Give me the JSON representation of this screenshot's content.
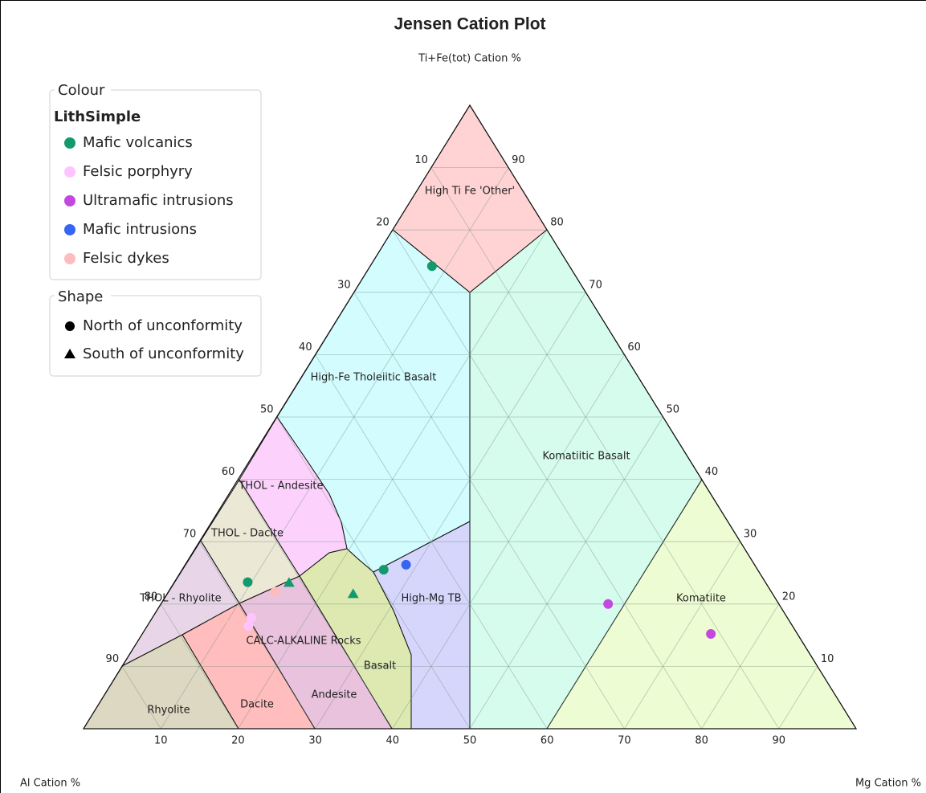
{
  "chart_data": {
    "type": "ternary",
    "title": "Jensen Cation Plot",
    "top_label": "Ti+Fe(tot) Cation %",
    "left_label": "Al Cation %",
    "right_label": "Mg Cation %",
    "al_ticks": [
      10,
      20,
      30,
      40,
      50,
      60,
      70,
      80,
      90
    ],
    "fe_ticks": [
      10,
      20,
      30,
      40,
      50,
      60,
      70,
      80,
      90
    ],
    "mg_ticks": [
      10,
      20,
      30,
      40,
      50,
      60,
      70,
      80,
      90
    ],
    "grid": true,
    "fields": [
      "High Ti Fe 'Other'",
      "High-Fe Tholeiitic Basalt",
      "Komatiitic Basalt",
      "THOL - Andesite",
      "THOL - Dacite",
      "THOL - Rhyolite",
      "High-Mg TB",
      "Komatiite",
      "CALC-ALKALINE Rocks",
      "Basalt",
      "Andesite",
      "Dacite",
      "Rhyolite"
    ],
    "colour_legend": {
      "title": "Colour",
      "subtitle": "LithSimple"
    },
    "shape_legend": {
      "title": "Shape",
      "items": [
        {
          "name": "North of unconformity",
          "marker": "circle"
        },
        {
          "name": "South of unconformity",
          "marker": "triangle"
        }
      ]
    },
    "series": [
      {
        "name": "Mafic volcanics",
        "color": "#139a6c",
        "points": [
          {
            "al": 17.8,
            "fe": 74.2,
            "mg": 8.0,
            "marker": "circle"
          },
          {
            "al": 67.0,
            "fe": 23.5,
            "mg": 9.5,
            "marker": "circle"
          },
          {
            "al": 48.4,
            "fe": 25.5,
            "mg": 26.1,
            "marker": "circle"
          },
          {
            "al": 61.7,
            "fe": 23.4,
            "mg": 14.9,
            "marker": "triangle"
          },
          {
            "al": 54.3,
            "fe": 21.6,
            "mg": 24.1,
            "marker": "triangle"
          }
        ]
      },
      {
        "name": "Felsic porphyry",
        "color": "#ffc4ff",
        "points": [
          {
            "al": 69.4,
            "fe": 17.8,
            "mg": 12.8,
            "marker": "circle"
          },
          {
            "al": 70.4,
            "fe": 16.5,
            "mg": 13.1,
            "marker": "circle"
          }
        ]
      },
      {
        "name": "Ultramafic intrusions",
        "color": "#c348e0",
        "points": [
          {
            "al": 22.1,
            "fe": 20.0,
            "mg": 57.9,
            "marker": "circle"
          },
          {
            "al": 11.2,
            "fe": 15.2,
            "mg": 73.6,
            "marker": "circle"
          }
        ]
      },
      {
        "name": "Mafic intrusions",
        "color": "#3565f2",
        "points": [
          {
            "al": 45.1,
            "fe": 26.3,
            "mg": 28.6,
            "marker": "circle"
          }
        ]
      },
      {
        "name": "Felsic dykes",
        "color": "#ffbcbc",
        "points": [
          {
            "al": 64.2,
            "fe": 22.0,
            "mg": 13.8,
            "marker": "circle"
          },
          {
            "al": 73.1,
            "fe": 17.6,
            "mg": 9.3,
            "marker": "circle"
          },
          {
            "al": 78.9,
            "fe": 13.0,
            "mg": 8.1,
            "marker": "circle"
          }
        ]
      }
    ]
  }
}
